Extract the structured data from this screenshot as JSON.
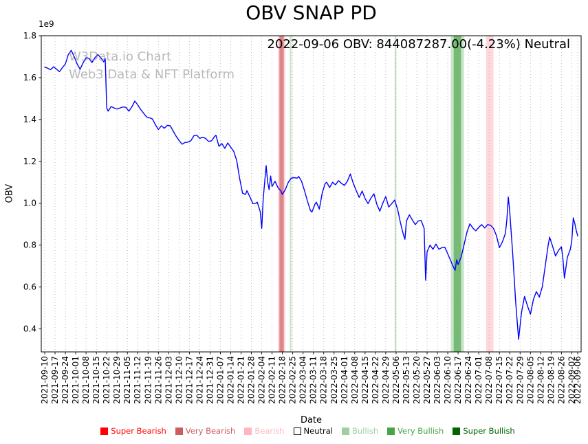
{
  "figure": {
    "annotation": "2022-09-06 OBV: 844087287.00(-4.23%) Neutral",
    "watermark_line1": "W3Data.io Chart",
    "watermark_line2": "Web3 Data & NFT Platform"
  },
  "chart_data": {
    "type": "line",
    "title": "OBV SNAP PD",
    "xlabel": "Date",
    "ylabel": "OBV",
    "y_offset_label": "1e9",
    "y_unit": 1000000000,
    "ylim": [
      0.29,
      1.8
    ],
    "y_ticks": [
      0.4,
      0.6,
      0.8,
      1.0,
      1.2,
      1.4,
      1.6,
      1.8
    ],
    "x_range": [
      "2021-09-10",
      "2022-09-06"
    ],
    "grid": "vertical-dotted",
    "line_color": "#0000ff",
    "latest": {
      "date": "2022-09-06",
      "obv": 844087287.0,
      "change_pct": -4.23,
      "signal": "Neutral"
    },
    "x_ticks": [
      "2021-09-10",
      "2021-09-17",
      "2021-09-24",
      "2021-10-01",
      "2021-10-08",
      "2021-10-15",
      "2021-10-22",
      "2021-10-29",
      "2021-11-05",
      "2021-11-12",
      "2021-11-19",
      "2021-11-26",
      "2021-12-03",
      "2021-12-10",
      "2021-12-17",
      "2021-12-24",
      "2021-12-31",
      "2022-01-07",
      "2022-01-14",
      "2022-01-21",
      "2022-01-28",
      "2022-02-04",
      "2022-02-11",
      "2022-02-18",
      "2022-02-25",
      "2022-03-04",
      "2022-03-11",
      "2022-03-18",
      "2022-03-25",
      "2022-04-01",
      "2022-04-08",
      "2022-04-15",
      "2022-04-22",
      "2022-04-29",
      "2022-05-06",
      "2022-05-13",
      "2022-05-20",
      "2022-05-27",
      "2022-06-03",
      "2022-06-10",
      "2022-06-17",
      "2022-06-24",
      "2022-07-01",
      "2022-07-08",
      "2022-07-15",
      "2022-07-22",
      "2022-07-29",
      "2022-08-05",
      "2022-08-12",
      "2022-08-19",
      "2022-08-26",
      "2022-09-02",
      "2022-09-06"
    ],
    "legend": [
      {
        "key": "super_bearish",
        "label": "Super Bearish",
        "color": "#ff0000",
        "text_color": "#ff0000"
      },
      {
        "key": "very_bearish",
        "label": "Very Bearish",
        "color": "#cd5c5c",
        "text_color": "#cd5c5c"
      },
      {
        "key": "bearish",
        "label": "Bearish",
        "color": "#ffb6c1",
        "text_color": "#ffb6c1"
      },
      {
        "key": "neutral",
        "label": "Neutral",
        "color": "#ffffff",
        "text_color": "#000000"
      },
      {
        "key": "bullish",
        "label": "Bullish",
        "color": "#9fce9f",
        "text_color": "#9fce9f"
      },
      {
        "key": "very_bullish",
        "label": "Very Bullish",
        "color": "#47a447",
        "text_color": "#47a447"
      },
      {
        "key": "super_bullish",
        "label": "Super Bullish",
        "color": "#006400",
        "text_color": "#006400"
      }
    ],
    "bands": [
      {
        "start": "2022-02-15",
        "end": "2022-02-20",
        "level": "bearish"
      },
      {
        "start": "2022-02-16",
        "end": "2022-02-19",
        "level": "very_bearish"
      },
      {
        "start": "2022-02-23",
        "end": "2022-02-24",
        "level": "bullish"
      },
      {
        "start": "2022-05-05",
        "end": "2022-05-06",
        "level": "bullish"
      },
      {
        "start": "2022-06-12",
        "end": "2022-06-21",
        "level": "bullish"
      },
      {
        "start": "2022-06-14",
        "end": "2022-06-19",
        "level": "very_bullish"
      },
      {
        "start": "2022-07-06",
        "end": "2022-07-11",
        "level": "bearish"
      }
    ],
    "points": [
      [
        "2021-09-10",
        1.65
      ],
      [
        "2021-09-12",
        1.645
      ],
      [
        "2021-09-14",
        1.638
      ],
      [
        "2021-09-16",
        1.652
      ],
      [
        "2021-09-18",
        1.64
      ],
      [
        "2021-09-20",
        1.628
      ],
      [
        "2021-09-22",
        1.648
      ],
      [
        "2021-09-24",
        1.665
      ],
      [
        "2021-09-26",
        1.71
      ],
      [
        "2021-09-28",
        1.73
      ],
      [
        "2021-09-30",
        1.7
      ],
      [
        "2021-10-02",
        1.665
      ],
      [
        "2021-10-04",
        1.64
      ],
      [
        "2021-10-06",
        1.67
      ],
      [
        "2021-10-08",
        1.695
      ],
      [
        "2021-10-10",
        1.692
      ],
      [
        "2021-10-12",
        1.672
      ],
      [
        "2021-10-14",
        1.695
      ],
      [
        "2021-10-16",
        1.71
      ],
      [
        "2021-10-18",
        1.695
      ],
      [
        "2021-10-20",
        1.675
      ],
      [
        "2021-10-21",
        1.69
      ],
      [
        "2021-10-22",
        1.455
      ],
      [
        "2021-10-23",
        1.44
      ],
      [
        "2021-10-25",
        1.462
      ],
      [
        "2021-10-27",
        1.455
      ],
      [
        "2021-10-29",
        1.45
      ],
      [
        "2021-10-31",
        1.455
      ],
      [
        "2021-11-02",
        1.46
      ],
      [
        "2021-11-04",
        1.458
      ],
      [
        "2021-11-06",
        1.44
      ],
      [
        "2021-11-08",
        1.46
      ],
      [
        "2021-11-10",
        1.488
      ],
      [
        "2021-11-12",
        1.47
      ],
      [
        "2021-11-14",
        1.448
      ],
      [
        "2021-11-16",
        1.43
      ],
      [
        "2021-11-18",
        1.412
      ],
      [
        "2021-11-20",
        1.408
      ],
      [
        "2021-11-22",
        1.402
      ],
      [
        "2021-11-24",
        1.375
      ],
      [
        "2021-11-26",
        1.352
      ],
      [
        "2021-11-28",
        1.37
      ],
      [
        "2021-11-30",
        1.358
      ],
      [
        "2021-12-02",
        1.372
      ],
      [
        "2021-12-04",
        1.37
      ],
      [
        "2021-12-06",
        1.345
      ],
      [
        "2021-12-08",
        1.32
      ],
      [
        "2021-12-10",
        1.3
      ],
      [
        "2021-12-12",
        1.282
      ],
      [
        "2021-12-14",
        1.29
      ],
      [
        "2021-12-16",
        1.292
      ],
      [
        "2021-12-18",
        1.298
      ],
      [
        "2021-12-20",
        1.322
      ],
      [
        "2021-12-22",
        1.325
      ],
      [
        "2021-12-24",
        1.31
      ],
      [
        "2021-12-26",
        1.315
      ],
      [
        "2021-12-28",
        1.31
      ],
      [
        "2021-12-30",
        1.295
      ],
      [
        "2022-01-01",
        1.298
      ],
      [
        "2022-01-03",
        1.318
      ],
      [
        "2022-01-04",
        1.325
      ],
      [
        "2022-01-06",
        1.272
      ],
      [
        "2022-01-08",
        1.285
      ],
      [
        "2022-01-10",
        1.262
      ],
      [
        "2022-01-12",
        1.288
      ],
      [
        "2022-01-14",
        1.268
      ],
      [
        "2022-01-16",
        1.248
      ],
      [
        "2022-01-18",
        1.205
      ],
      [
        "2022-01-20",
        1.12
      ],
      [
        "2022-01-22",
        1.048
      ],
      [
        "2022-01-24",
        1.042
      ],
      [
        "2022-01-25",
        1.06
      ],
      [
        "2022-01-27",
        1.03
      ],
      [
        "2022-01-29",
        0.998
      ],
      [
        "2022-01-31",
        1.0
      ],
      [
        "2022-02-01",
        1.005
      ],
      [
        "2022-02-03",
        0.96
      ],
      [
        "2022-02-04",
        0.88
      ],
      [
        "2022-02-05",
        1.02
      ],
      [
        "2022-02-07",
        1.18
      ],
      [
        "2022-02-08",
        1.1
      ],
      [
        "2022-02-09",
        1.065
      ],
      [
        "2022-02-10",
        1.13
      ],
      [
        "2022-02-11",
        1.08
      ],
      [
        "2022-02-13",
        1.105
      ],
      [
        "2022-02-15",
        1.075
      ],
      [
        "2022-02-17",
        1.058
      ],
      [
        "2022-02-18",
        1.042
      ],
      [
        "2022-02-20",
        1.065
      ],
      [
        "2022-02-22",
        1.1
      ],
      [
        "2022-02-24",
        1.12
      ],
      [
        "2022-02-26",
        1.122
      ],
      [
        "2022-02-28",
        1.12
      ],
      [
        "2022-03-01",
        1.128
      ],
      [
        "2022-03-03",
        1.105
      ],
      [
        "2022-03-05",
        1.06
      ],
      [
        "2022-03-07",
        1.01
      ],
      [
        "2022-03-09",
        0.965
      ],
      [
        "2022-03-10",
        0.958
      ],
      [
        "2022-03-12",
        0.995
      ],
      [
        "2022-03-13",
        1.005
      ],
      [
        "2022-03-15",
        0.972
      ],
      [
        "2022-03-17",
        1.05
      ],
      [
        "2022-03-19",
        1.095
      ],
      [
        "2022-03-20",
        1.1
      ],
      [
        "2022-03-22",
        1.075
      ],
      [
        "2022-03-24",
        1.1
      ],
      [
        "2022-03-26",
        1.088
      ],
      [
        "2022-03-28",
        1.108
      ],
      [
        "2022-03-30",
        1.095
      ],
      [
        "2022-04-01",
        1.085
      ],
      [
        "2022-04-03",
        1.105
      ],
      [
        "2022-04-05",
        1.14
      ],
      [
        "2022-04-07",
        1.095
      ],
      [
        "2022-04-09",
        1.06
      ],
      [
        "2022-04-11",
        1.028
      ],
      [
        "2022-04-13",
        1.058
      ],
      [
        "2022-04-15",
        1.022
      ],
      [
        "2022-04-17",
        0.998
      ],
      [
        "2022-04-19",
        1.025
      ],
      [
        "2022-04-21",
        1.045
      ],
      [
        "2022-04-23",
        0.995
      ],
      [
        "2022-04-25",
        0.962
      ],
      [
        "2022-04-27",
        1.0
      ],
      [
        "2022-04-29",
        1.032
      ],
      [
        "2022-05-01",
        0.982
      ],
      [
        "2022-05-03",
        0.998
      ],
      [
        "2022-05-05",
        1.015
      ],
      [
        "2022-05-07",
        0.972
      ],
      [
        "2022-05-09",
        0.905
      ],
      [
        "2022-05-11",
        0.848
      ],
      [
        "2022-05-12",
        0.828
      ],
      [
        "2022-05-13",
        0.915
      ],
      [
        "2022-05-15",
        0.945
      ],
      [
        "2022-05-17",
        0.92
      ],
      [
        "2022-05-19",
        0.898
      ],
      [
        "2022-05-21",
        0.915
      ],
      [
        "2022-05-23",
        0.918
      ],
      [
        "2022-05-25",
        0.88
      ],
      [
        "2022-05-26",
        0.632
      ],
      [
        "2022-05-27",
        0.768
      ],
      [
        "2022-05-29",
        0.8
      ],
      [
        "2022-05-31",
        0.78
      ],
      [
        "2022-06-02",
        0.805
      ],
      [
        "2022-06-04",
        0.78
      ],
      [
        "2022-06-06",
        0.788
      ],
      [
        "2022-06-08",
        0.79
      ],
      [
        "2022-06-10",
        0.758
      ],
      [
        "2022-06-12",
        0.725
      ],
      [
        "2022-06-14",
        0.692
      ],
      [
        "2022-06-15",
        0.68
      ],
      [
        "2022-06-16",
        0.73
      ],
      [
        "2022-06-17",
        0.708
      ],
      [
        "2022-06-19",
        0.742
      ],
      [
        "2022-06-21",
        0.8
      ],
      [
        "2022-06-23",
        0.862
      ],
      [
        "2022-06-25",
        0.902
      ],
      [
        "2022-06-27",
        0.882
      ],
      [
        "2022-06-29",
        0.868
      ],
      [
        "2022-07-01",
        0.885
      ],
      [
        "2022-07-03",
        0.898
      ],
      [
        "2022-07-05",
        0.882
      ],
      [
        "2022-07-07",
        0.898
      ],
      [
        "2022-07-09",
        0.895
      ],
      [
        "2022-07-11",
        0.88
      ],
      [
        "2022-07-13",
        0.845
      ],
      [
        "2022-07-15",
        0.788
      ],
      [
        "2022-07-17",
        0.815
      ],
      [
        "2022-07-19",
        0.855
      ],
      [
        "2022-07-20",
        0.92
      ],
      [
        "2022-07-21",
        1.03
      ],
      [
        "2022-07-22",
        0.96
      ],
      [
        "2022-07-24",
        0.76
      ],
      [
        "2022-07-26",
        0.53
      ],
      [
        "2022-07-28",
        0.35
      ],
      [
        "2022-07-30",
        0.48
      ],
      [
        "2022-08-01",
        0.555
      ],
      [
        "2022-08-03",
        0.51
      ],
      [
        "2022-08-05",
        0.47
      ],
      [
        "2022-08-07",
        0.54
      ],
      [
        "2022-08-09",
        0.578
      ],
      [
        "2022-08-11",
        0.552
      ],
      [
        "2022-08-13",
        0.6
      ],
      [
        "2022-08-15",
        0.7
      ],
      [
        "2022-08-17",
        0.8
      ],
      [
        "2022-08-18",
        0.838
      ],
      [
        "2022-08-20",
        0.795
      ],
      [
        "2022-08-22",
        0.748
      ],
      [
        "2022-08-24",
        0.775
      ],
      [
        "2022-08-26",
        0.792
      ],
      [
        "2022-08-27",
        0.735
      ],
      [
        "2022-08-28",
        0.642
      ],
      [
        "2022-08-30",
        0.742
      ],
      [
        "2022-09-01",
        0.78
      ],
      [
        "2022-09-02",
        0.82
      ],
      [
        "2022-09-03",
        0.93
      ],
      [
        "2022-09-04",
        0.905
      ],
      [
        "2022-09-05",
        0.87
      ],
      [
        "2022-09-06",
        0.844
      ]
    ]
  }
}
